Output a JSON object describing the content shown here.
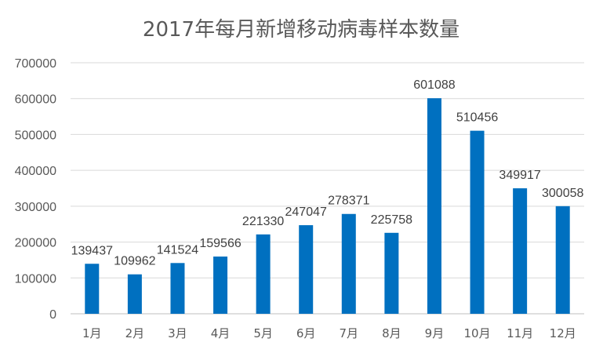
{
  "chart_data": {
    "type": "bar",
    "title": "2017年每月新增移动病毒样本数量",
    "xlabel": "",
    "ylabel": "",
    "categories": [
      "1月",
      "2月",
      "3月",
      "4月",
      "5月",
      "6月",
      "7月",
      "8月",
      "9月",
      "10月",
      "11月",
      "12月"
    ],
    "values": [
      139437,
      109962,
      141524,
      159566,
      221330,
      247047,
      278371,
      225758,
      601088,
      510456,
      349917,
      300058
    ],
    "ylim": [
      0,
      700000
    ],
    "yticks": [
      0,
      100000,
      200000,
      300000,
      400000,
      500000,
      600000,
      700000
    ],
    "ytick_labels": [
      "0",
      "100000",
      "200000",
      "300000",
      "400000",
      "500000",
      "600000",
      "700000"
    ],
    "grid": true,
    "legend": "none",
    "bar_color": "#0070c0"
  }
}
